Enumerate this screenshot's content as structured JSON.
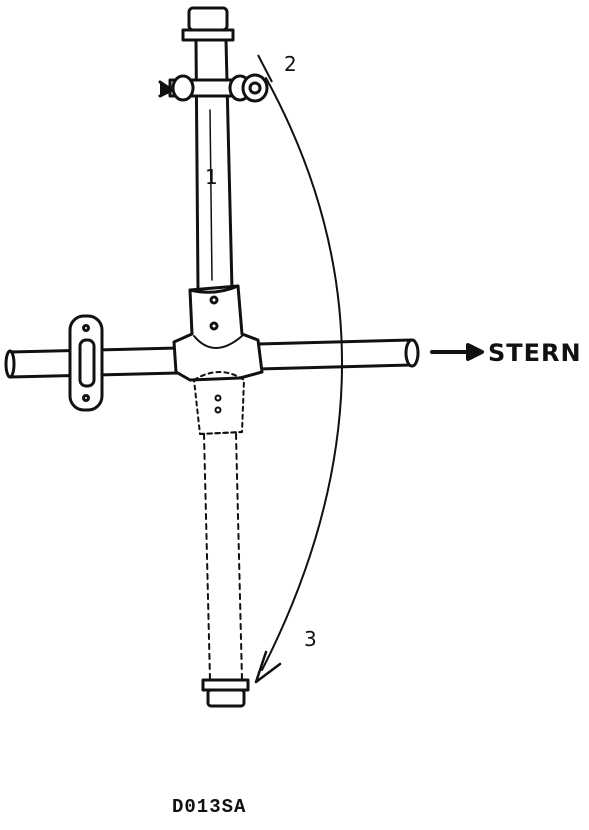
{
  "figure": {
    "callouts": [
      "1",
      "2",
      "3"
    ],
    "direction_label": "STERN",
    "figure_code": "D013SA"
  },
  "colors": {
    "ink": "#111111",
    "paper": "#ffffff"
  }
}
